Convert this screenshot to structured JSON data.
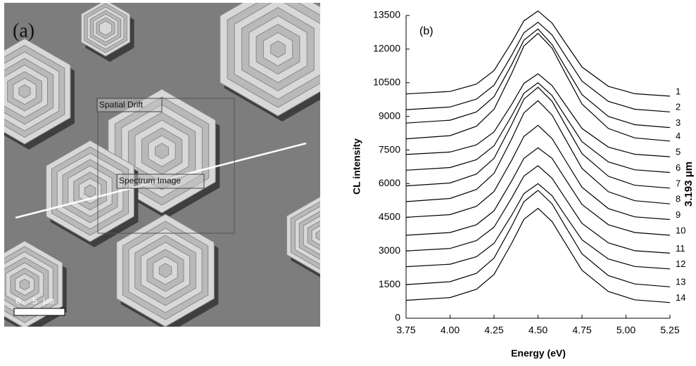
{
  "image_panel": {
    "label": "(a)",
    "annotations": [
      "Spatial Drift",
      "Spectrum Image"
    ],
    "scale_bar": "0. 5 μm"
  },
  "chart_data": {
    "type": "line",
    "title": "(b)",
    "xlabel": "Energy (eV)",
    "ylabel": "CL intensity",
    "right_label": "3.193 μm",
    "x": [
      3.75,
      4.0,
      4.15,
      4.25,
      4.35,
      4.42,
      4.5,
      4.58,
      4.65,
      4.75,
      4.9,
      5.05,
      5.25
    ],
    "xlim": [
      3.75,
      5.25
    ],
    "xticks": [
      3.75,
      {
        "value": 4,
        "label": "4.00"
      },
      4.25,
      {
        "value": 4.5,
        "label": "4.50"
      },
      4.75,
      {
        "value": 5,
        "label": "5.00"
      },
      5.25
    ],
    "ylim": [
      0,
      13500
    ],
    "yticks": [
      0,
      1500,
      3000,
      4500,
      6000,
      7500,
      9000,
      10500,
      12000,
      13500
    ],
    "series": [
      {
        "name": "1",
        "color": "#000000",
        "values": [
          10000,
          10110,
          10440,
          11040,
          12290,
          13260,
          13700,
          13160,
          12340,
          11200,
          10340,
          10010,
          9900
        ]
      },
      {
        "name": "2",
        "color": "#000000",
        "values": [
          9300,
          9420,
          9770,
          10390,
          11720,
          12730,
          13200,
          12630,
          11770,
          10570,
          9670,
          9320,
          9200
        ]
      },
      {
        "name": "3",
        "color": "#000000",
        "values": [
          8700,
          8830,
          9200,
          9880,
          11300,
          12400,
          12900,
          12200,
          11270,
          9970,
          9000,
          8630,
          8500
        ]
      },
      {
        "name": "4",
        "color": "#000000",
        "values": [
          8000,
          8140,
          8560,
          9320,
          10910,
          12140,
          12700,
          12040,
          11000,
          9550,
          8460,
          8040,
          7900
        ]
      },
      {
        "name": "5",
        "color": "#000000",
        "values": [
          7300,
          7410,
          7730,
          8310,
          9530,
          10470,
          10900,
          10370,
          9580,
          8460,
          7630,
          7310,
          7200
        ]
      },
      {
        "name": "6",
        "color": "#000000",
        "values": [
          6600,
          6720,
          7070,
          7690,
          9020,
          10030,
          10500,
          9930,
          9070,
          7870,
          6970,
          6620,
          6500
        ]
      },
      {
        "name": "7",
        "color": "#000000",
        "values": [
          5900,
          6030,
          6430,
          7130,
          8630,
          9770,
          10300,
          9670,
          8700,
          7340,
          6330,
          5930,
          5800
        ]
      },
      {
        "name": "8",
        "color": "#000000",
        "values": [
          5200,
          5340,
          5740,
          6460,
          7990,
          9160,
          9700,
          9060,
          8070,
          6680,
          5640,
          5240,
          5100
        ]
      },
      {
        "name": "9",
        "color": "#000000",
        "values": [
          4500,
          4620,
          4990,
          5650,
          7040,
          8110,
          8600,
          8010,
          7110,
          5840,
          4890,
          4520,
          4400
        ]
      },
      {
        "name": "10",
        "color": "#000000",
        "values": [
          3700,
          3820,
          4170,
          4790,
          6120,
          7130,
          7600,
          7130,
          6270,
          5070,
          4170,
          3820,
          3700
        ]
      },
      {
        "name": "11",
        "color": "#000000",
        "values": [
          3000,
          3110,
          3460,
          4060,
          5360,
          6340,
          6800,
          6240,
          5410,
          4230,
          3360,
          3010,
          2900
        ]
      },
      {
        "name": "12",
        "color": "#000000",
        "values": [
          2300,
          2410,
          2740,
          3340,
          4590,
          5560,
          6000,
          5460,
          4640,
          3500,
          2640,
          2310,
          2200
        ]
      },
      {
        "name": "13",
        "color": "#000000",
        "values": [
          1500,
          1630,
          2000,
          2680,
          4100,
          5200,
          5700,
          5100,
          4170,
          2870,
          1900,
          1530,
          1400
        ]
      },
      {
        "name": "14",
        "color": "#000000",
        "values": [
          800,
          920,
          1290,
          1950,
          3340,
          4410,
          4900,
          4310,
          3410,
          2140,
          1190,
          820,
          700
        ]
      }
    ]
  }
}
